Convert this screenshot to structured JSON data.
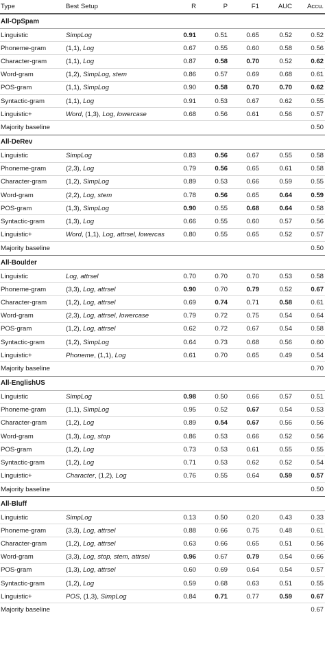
{
  "header": {
    "type": "Type",
    "setup": "Best Setup",
    "r": "R",
    "p": "P",
    "f1": "F1",
    "auc": "AUC",
    "acc": "Accu."
  },
  "groups": [
    {
      "title": "All-OpSpam",
      "rows": [
        {
          "type": "Linguistic",
          "setup": [
            [
              "SimpLog",
              true
            ]
          ],
          "r": "0.91",
          "p": "0.51",
          "f1": "0.65",
          "auc": "0.52",
          "acc": "0.52",
          "bold": [
            "r"
          ]
        },
        {
          "type": "Phoneme-gram",
          "setup": [
            [
              "(1,1), ",
              false
            ],
            [
              "Log",
              true
            ]
          ],
          "r": "0.67",
          "p": "0.55",
          "f1": "0.60",
          "auc": "0.58",
          "acc": "0.56",
          "bold": []
        },
        {
          "type": "Character-gram",
          "setup": [
            [
              "(1,1), ",
              false
            ],
            [
              "Log",
              true
            ]
          ],
          "r": "0.87",
          "p": "0.58",
          "f1": "0.70",
          "auc": "0.52",
          "acc": "0.62",
          "bold": [
            "p",
            "f1",
            "acc"
          ]
        },
        {
          "type": "Word-gram",
          "setup": [
            [
              "(1,2), ",
              false
            ],
            [
              "SimpLog, stem",
              true
            ]
          ],
          "r": "0.86",
          "p": "0.57",
          "f1": "0.69",
          "auc": "0.68",
          "acc": "0.61",
          "bold": []
        },
        {
          "type": "POS-gram",
          "setup": [
            [
              "(1,1), ",
              false
            ],
            [
              "SimpLog",
              true
            ]
          ],
          "r": "0.90",
          "p": "0.58",
          "f1": "0.70",
          "auc": "0.70",
          "acc": "0.62",
          "bold": [
            "p",
            "f1",
            "auc",
            "acc"
          ]
        },
        {
          "type": "Syntactic-gram",
          "setup": [
            [
              "(1,1), ",
              false
            ],
            [
              "Log",
              true
            ]
          ],
          "r": "0.91",
          "p": "0.53",
          "f1": "0.67",
          "auc": "0.62",
          "acc": "0.55",
          "bold": []
        },
        {
          "type": "Linguistic+",
          "setup": [
            [
              "Word",
              true
            ],
            [
              ", (1,3), ",
              false
            ],
            [
              "Log, lowercase",
              true
            ]
          ],
          "r": "0.68",
          "p": "0.56",
          "f1": "0.61",
          "auc": "0.56",
          "acc": "0.57",
          "bold": []
        },
        {
          "type": "Majority baseline",
          "setup": [],
          "r": "",
          "p": "",
          "f1": "",
          "auc": "",
          "acc": "0.50",
          "bold": []
        }
      ]
    },
    {
      "title": "All-DeRev",
      "rows": [
        {
          "type": "Linguistic",
          "setup": [
            [
              "SimpLog",
              true
            ]
          ],
          "r": "0.83",
          "p": "0.56",
          "f1": "0.67",
          "auc": "0.55",
          "acc": "0.58",
          "bold": [
            "p"
          ]
        },
        {
          "type": "Phoneme-gram",
          "setup": [
            [
              "(2,3), ",
              false
            ],
            [
              "Log",
              true
            ]
          ],
          "r": "0.79",
          "p": "0.56",
          "f1": "0.65",
          "auc": "0.61",
          "acc": "0.58",
          "bold": [
            "p"
          ]
        },
        {
          "type": "Character-gram",
          "setup": [
            [
              "(1,2), ",
              false
            ],
            [
              "SimpLog",
              true
            ]
          ],
          "r": "0.89",
          "p": "0.53",
          "f1": "0.66",
          "auc": "0.59",
          "acc": "0.55",
          "bold": []
        },
        {
          "type": "Word-gram",
          "setup": [
            [
              "(2,2), ",
              false
            ],
            [
              "Log, stem",
              true
            ]
          ],
          "r": "0.78",
          "p": "0.56",
          "f1": "0.65",
          "auc": "0.64",
          "acc": "0.59",
          "bold": [
            "p",
            "auc",
            "acc"
          ]
        },
        {
          "type": "POS-gram",
          "setup": [
            [
              "(1,3), ",
              false
            ],
            [
              "SimpLog",
              true
            ]
          ],
          "r": "0.90",
          "p": "0.55",
          "f1": "0.68",
          "auc": "0.64",
          "acc": "0.58",
          "bold": [
            "r",
            "f1",
            "auc"
          ]
        },
        {
          "type": "Syntactic-gram",
          "setup": [
            [
              "(1,3), ",
              false
            ],
            [
              "Log",
              true
            ]
          ],
          "r": "0.66",
          "p": "0.55",
          "f1": "0.60",
          "auc": "0.57",
          "acc": "0.56",
          "bold": []
        },
        {
          "type": "Linguistic+",
          "setup": [
            [
              "Word",
              true
            ],
            [
              ", (1,1), ",
              false
            ],
            [
              "Log, attrsel, lowercase",
              true
            ]
          ],
          "r": "0.80",
          "p": "0.55",
          "f1": "0.65",
          "auc": "0.52",
          "acc": "0.57",
          "bold": []
        },
        {
          "type": "Majority baseline",
          "setup": [],
          "r": "",
          "p": "",
          "f1": "",
          "auc": "",
          "acc": "0.50",
          "bold": []
        }
      ]
    },
    {
      "title": "All-Boulder",
      "rows": [
        {
          "type": "Linguistic",
          "setup": [
            [
              "Log, attrsel",
              true
            ]
          ],
          "r": "0.70",
          "p": "0.70",
          "f1": "0.70",
          "auc": "0.53",
          "acc": "0.58",
          "bold": []
        },
        {
          "type": "Phoneme-gram",
          "setup": [
            [
              "(3,3), ",
              false
            ],
            [
              "Log, attrsel",
              true
            ]
          ],
          "r": "0.90",
          "p": "0.70",
          "f1": "0.79",
          "auc": "0.52",
          "acc": "0.67",
          "bold": [
            "r",
            "f1",
            "acc"
          ]
        },
        {
          "type": "Character-gram",
          "setup": [
            [
              "(1,2), ",
              false
            ],
            [
              "Log, attrsel",
              true
            ]
          ],
          "r": "0.69",
          "p": "0.74",
          "f1": "0.71",
          "auc": "0.58",
          "acc": "0.61",
          "bold": [
            "p",
            "auc"
          ]
        },
        {
          "type": "Word-gram",
          "setup": [
            [
              "(2,3), ",
              false
            ],
            [
              "Log, attrsel, lowercase",
              true
            ]
          ],
          "r": "0.79",
          "p": "0.72",
          "f1": "0.75",
          "auc": "0.54",
          "acc": "0.64",
          "bold": []
        },
        {
          "type": "POS-gram",
          "setup": [
            [
              "(1,2), ",
              false
            ],
            [
              "Log, attrsel",
              true
            ]
          ],
          "r": "0.62",
          "p": "0.72",
          "f1": "0.67",
          "auc": "0.54",
          "acc": "0.58",
          "bold": []
        },
        {
          "type": "Syntactic-gram",
          "setup": [
            [
              "(1,2), ",
              false
            ],
            [
              "SimpLog",
              true
            ]
          ],
          "r": "0.64",
          "p": "0.73",
          "f1": "0.68",
          "auc": "0.56",
          "acc": "0.60",
          "bold": []
        },
        {
          "type": "Linguistic+",
          "setup": [
            [
              "Phoneme",
              true
            ],
            [
              ", (1,1), ",
              false
            ],
            [
              "Log",
              true
            ]
          ],
          "r": "0.61",
          "p": "0.70",
          "f1": "0.65",
          "auc": "0.49",
          "acc": "0.54",
          "bold": []
        },
        {
          "type": "Majority baseline",
          "setup": [],
          "r": "",
          "p": "",
          "f1": "",
          "auc": "",
          "acc": "0.70",
          "bold": []
        }
      ]
    },
    {
      "title": "All-EnglishUS",
      "rows": [
        {
          "type": "Linguistic",
          "setup": [
            [
              "SimpLog",
              true
            ]
          ],
          "r": "0.98",
          "p": "0.50",
          "f1": "0.66",
          "auc": "0.57",
          "acc": "0.51",
          "bold": [
            "r"
          ]
        },
        {
          "type": "Phoneme-gram",
          "setup": [
            [
              "(1,1), ",
              false
            ],
            [
              "SimpLog",
              true
            ]
          ],
          "r": "0.95",
          "p": "0.52",
          "f1": "0.67",
          "auc": "0.54",
          "acc": "0.53",
          "bold": [
            "f1"
          ]
        },
        {
          "type": "Character-gram",
          "setup": [
            [
              "(1,2), ",
              false
            ],
            [
              "Log",
              true
            ]
          ],
          "r": "0.89",
          "p": "0.54",
          "f1": "0.67",
          "auc": "0.56",
          "acc": "0.56",
          "bold": [
            "p",
            "f1"
          ]
        },
        {
          "type": "Word-gram",
          "setup": [
            [
              "(1,3), ",
              false
            ],
            [
              "Log, stop",
              true
            ]
          ],
          "r": "0.86",
          "p": "0.53",
          "f1": "0.66",
          "auc": "0.52",
          "acc": "0.56",
          "bold": []
        },
        {
          "type": "POS-gram",
          "setup": [
            [
              "(1,2), ",
              false
            ],
            [
              "Log",
              true
            ]
          ],
          "r": "0.73",
          "p": "0.53",
          "f1": "0.61",
          "auc": "0.55",
          "acc": "0.55",
          "bold": []
        },
        {
          "type": "Syntactic-gram",
          "setup": [
            [
              "(1,2), ",
              false
            ],
            [
              "Log",
              true
            ]
          ],
          "r": "0.71",
          "p": "0.53",
          "f1": "0.62",
          "auc": "0.52",
          "acc": "0.54",
          "bold": []
        },
        {
          "type": "Linguistic+",
          "setup": [
            [
              "Character",
              true
            ],
            [
              ", (1,2), ",
              false
            ],
            [
              "Log",
              true
            ]
          ],
          "r": "0.76",
          "p": "0.55",
          "f1": "0.64",
          "auc": "0.59",
          "acc": "0.57",
          "bold": [
            "auc",
            "acc"
          ]
        },
        {
          "type": "Majority baseline",
          "setup": [],
          "r": "",
          "p": "",
          "f1": "",
          "auc": "",
          "acc": "0.50",
          "bold": []
        }
      ]
    },
    {
      "title": "All-Bluff",
      "rows": [
        {
          "type": "Linguistic",
          "setup": [
            [
              "SimpLog",
              true
            ]
          ],
          "r": "0.13",
          "p": "0.50",
          "f1": "0.20",
          "auc": "0.43",
          "acc": "0.33",
          "bold": []
        },
        {
          "type": "Phoneme-gram",
          "setup": [
            [
              "(3,3), ",
              false
            ],
            [
              "Log, attrsel",
              true
            ]
          ],
          "r": "0.88",
          "p": "0.66",
          "f1": "0.75",
          "auc": "0.48",
          "acc": "0.61",
          "bold": []
        },
        {
          "type": "Character-gram",
          "setup": [
            [
              "(1,2), ",
              false
            ],
            [
              "Log, attrsel",
              true
            ]
          ],
          "r": "0.63",
          "p": "0.66",
          "f1": "0.65",
          "auc": "0.51",
          "acc": "0.56",
          "bold": []
        },
        {
          "type": "Word-gram",
          "setup": [
            [
              "(3,3), ",
              false
            ],
            [
              "Log, stop, stem, attrsel",
              true
            ]
          ],
          "r": "0.96",
          "p": "0.67",
          "f1": "0.79",
          "auc": "0.54",
          "acc": "0.66",
          "bold": [
            "r",
            "f1"
          ]
        },
        {
          "type": "POS-gram",
          "setup": [
            [
              "(1,3), ",
              false
            ],
            [
              "Log, attrsel",
              true
            ]
          ],
          "r": "0.60",
          "p": "0.69",
          "f1": "0.64",
          "auc": "0.54",
          "acc": "0.57",
          "bold": []
        },
        {
          "type": "Syntactic-gram",
          "setup": [
            [
              "(1,2), ",
              false
            ],
            [
              "Log",
              true
            ]
          ],
          "r": "0.59",
          "p": "0.68",
          "f1": "0.63",
          "auc": "0.51",
          "acc": "0.55",
          "bold": []
        },
        {
          "type": "Linguistic+",
          "setup": [
            [
              "POS",
              true
            ],
            [
              ", (1,3), ",
              false
            ],
            [
              "SimpLog",
              true
            ]
          ],
          "r": "0.84",
          "p": "0.71",
          "f1": "0.77",
          "auc": "0.59",
          "acc": "0.67",
          "bold": [
            "p",
            "auc",
            "acc"
          ]
        },
        {
          "type": "Majority baseline",
          "setup": [],
          "r": "",
          "p": "",
          "f1": "",
          "auc": "",
          "acc": "0.67",
          "bold": []
        }
      ]
    }
  ]
}
